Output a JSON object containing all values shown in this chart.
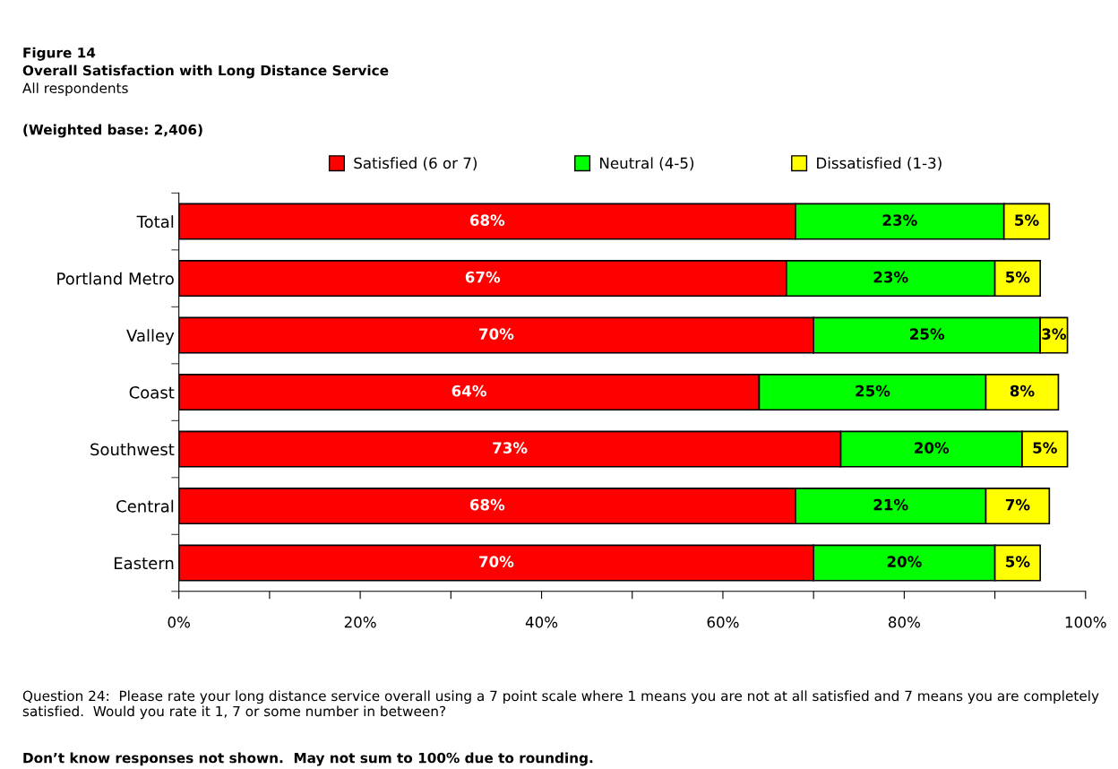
{
  "chart_data": {
    "type": "bar",
    "orientation": "horizontal",
    "stacked": true,
    "title": "Overall Satisfaction with Long Distance Service",
    "subtitle": "All respondents",
    "annotations": [
      "Figure 14",
      "(Weighted base: 2,406)",
      "Question 24:  Please rate your long distance service overall using a 7 point scale where 1 means you are not at all satisfied and 7 means you are completely satisfied.  Would you rate it 1, 7 or some number in between?",
      "Don’t know responses not shown.  May not sum to 100% due to rounding."
    ],
    "categories": [
      "Total",
      "Portland Metro",
      "Valley",
      "Coast",
      "Southwest",
      "Central",
      "Eastern"
    ],
    "series": [
      {
        "name": "Satisfied (6 or 7)",
        "color": "#ff0000",
        "values": [
          68,
          67,
          70,
          64,
          73,
          68,
          70
        ],
        "value_labels": [
          "68%",
          "67%",
          "70%",
          "64%",
          "73%",
          "68%",
          "70%"
        ]
      },
      {
        "name": "Neutral (4-5)",
        "color": "#00ff00",
        "values": [
          23,
          23,
          25,
          25,
          20,
          21,
          20
        ],
        "value_labels": [
          "23%",
          "23%",
          "25%",
          "25%",
          "20%",
          "21%",
          "20%"
        ]
      },
      {
        "name": "Dissatisfied (1-3)",
        "color": "#ffff00",
        "values": [
          5,
          5,
          3,
          8,
          5,
          7,
          5
        ],
        "value_labels": [
          "5%",
          "5%",
          "3%",
          "8%",
          "5%",
          "7%",
          "5%"
        ]
      }
    ],
    "xlim": [
      0,
      100
    ],
    "xticks": [
      {
        "value": 0,
        "label": "0%"
      },
      {
        "value": 10,
        "label": null
      },
      {
        "value": 20,
        "label": "20%"
      },
      {
        "value": 30,
        "label": null
      },
      {
        "value": 40,
        "label": "40%"
      },
      {
        "value": 50,
        "label": null
      },
      {
        "value": 60,
        "label": "60%"
      },
      {
        "value": 70,
        "label": null
      },
      {
        "value": 80,
        "label": "80%"
      },
      {
        "value": 90,
        "label": null
      },
      {
        "value": 100,
        "label": "100%"
      }
    ],
    "legend": "top",
    "grid": false
  }
}
